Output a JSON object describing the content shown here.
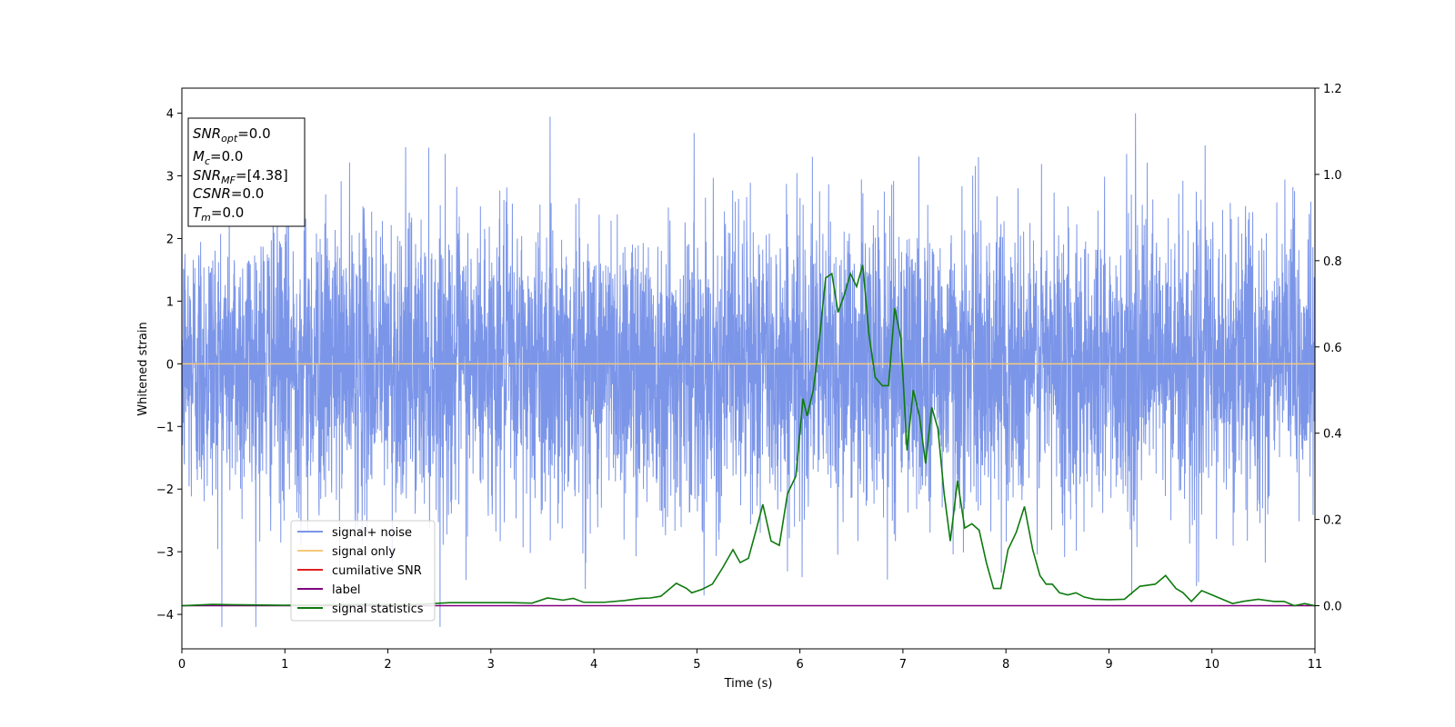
{
  "chart_data": {
    "type": "line",
    "xlabel": "Time (s)",
    "ylabel": "Whitened strain",
    "xlim": [
      0,
      11
    ],
    "ylim_left": [
      -4.55,
      4.4
    ],
    "ylim_right": [
      -0.1,
      1.2
    ],
    "x_ticks": [
      "0",
      "1",
      "2",
      "3",
      "4",
      "5",
      "6",
      "7",
      "8",
      "9",
      "10",
      "11"
    ],
    "y_left_ticks": [
      "4",
      "3",
      "2",
      "1",
      "0",
      "−1",
      "−2",
      "−3",
      "−4"
    ],
    "y_right_ticks": [
      "1.2",
      "1.0",
      "0.8",
      "0.6",
      "0.4",
      "0.2",
      "0.0"
    ],
    "grid": false,
    "legend_position": "lower-left",
    "series": [
      {
        "name": "signal+ noise",
        "color": "#7b95e8",
        "axis": "left",
        "description": "whitened noise, roughly +/-3.5 range",
        "x_range": [
          0,
          11
        ]
      },
      {
        "name": "signal only",
        "color": "#f5c97a",
        "axis": "left",
        "x": [
          0,
          11
        ],
        "y": [
          0,
          0
        ]
      },
      {
        "name": "cumilative SNR",
        "color": "#e02020",
        "axis": "right",
        "x": [],
        "y": []
      },
      {
        "name": "label",
        "color": "#800080",
        "axis": "right",
        "x": [
          0,
          11
        ],
        "y": [
          0,
          0
        ]
      },
      {
        "name": "signal statistics",
        "color": "#0e7a0e",
        "axis": "right",
        "x": [
          0,
          0.3,
          0.6,
          1.0,
          1.4,
          1.8,
          2.2,
          2.6,
          3.0,
          3.2,
          3.4,
          3.55,
          3.7,
          3.8,
          3.9,
          4.1,
          4.3,
          4.45,
          4.55,
          4.65,
          4.75,
          4.8,
          4.9,
          4.95,
          5.05,
          5.15,
          5.25,
          5.35,
          5.42,
          5.5,
          5.58,
          5.64,
          5.72,
          5.8,
          5.88,
          5.96,
          6.03,
          6.07,
          6.13,
          6.19,
          6.25,
          6.31,
          6.37,
          6.43,
          6.49,
          6.55,
          6.61,
          6.67,
          6.73,
          6.8,
          6.86,
          6.92,
          6.98,
          7.04,
          7.1,
          7.16,
          7.22,
          7.28,
          7.34,
          7.4,
          7.46,
          7.53,
          7.6,
          7.67,
          7.74,
          7.81,
          7.88,
          7.95,
          8.02,
          8.1,
          8.18,
          8.26,
          8.33,
          8.39,
          8.45,
          8.52,
          8.6,
          8.68,
          8.76,
          8.86,
          9.0,
          9.15,
          9.3,
          9.45,
          9.55,
          9.65,
          9.72,
          9.8,
          9.9,
          10.0,
          10.1,
          10.2,
          10.3,
          10.45,
          10.6,
          10.7,
          10.8,
          10.9,
          11.0
        ],
        "y": [
          0.0,
          0.003,
          0.002,
          0.001,
          0.002,
          0.003,
          0.002,
          0.007,
          0.007,
          0.007,
          0.006,
          0.018,
          0.013,
          0.017,
          0.008,
          0.008,
          0.012,
          0.017,
          0.018,
          0.022,
          0.042,
          0.052,
          0.04,
          0.03,
          0.038,
          0.05,
          0.088,
          0.13,
          0.1,
          0.11,
          0.18,
          0.235,
          0.15,
          0.14,
          0.26,
          0.3,
          0.48,
          0.44,
          0.5,
          0.62,
          0.76,
          0.77,
          0.68,
          0.72,
          0.77,
          0.74,
          0.79,
          0.63,
          0.53,
          0.51,
          0.51,
          0.69,
          0.62,
          0.36,
          0.5,
          0.44,
          0.33,
          0.46,
          0.41,
          0.26,
          0.15,
          0.29,
          0.18,
          0.19,
          0.175,
          0.1,
          0.04,
          0.04,
          0.13,
          0.17,
          0.23,
          0.13,
          0.07,
          0.05,
          0.05,
          0.03,
          0.025,
          0.03,
          0.02,
          0.015,
          0.014,
          0.015,
          0.045,
          0.05,
          0.07,
          0.04,
          0.03,
          0.01,
          0.035,
          0.025,
          0.015,
          0.005,
          0.01,
          0.015,
          0.01,
          0.01,
          0.0,
          0.005,
          0.0
        ]
      }
    ]
  },
  "info_box": {
    "lines": [
      {
        "main": "SNR",
        "sub": "opt",
        "value": "=0.0"
      },
      {
        "main": "M",
        "sub": "c",
        "value": "=0.0"
      },
      {
        "main": "SNR",
        "sub": "MF",
        "value": "=[4.38]"
      },
      {
        "main": "CSNR",
        "sub": "",
        "value": "=0.0"
      },
      {
        "main": "T",
        "sub": "m",
        "value": "=0.0"
      }
    ]
  }
}
